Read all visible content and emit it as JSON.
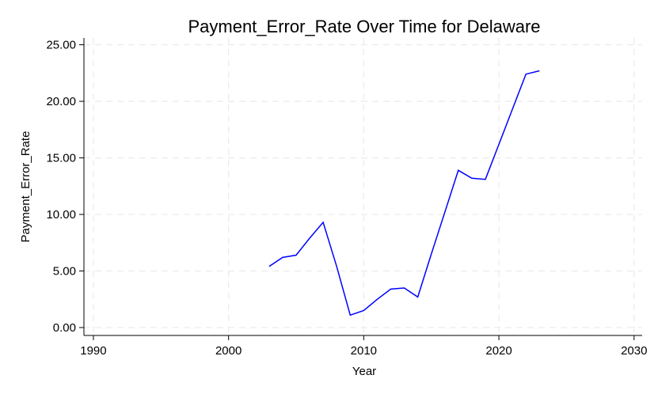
{
  "chart_data": {
    "type": "line",
    "title": "Payment_Error_Rate Over Time for Delaware",
    "xlabel": "Year",
    "ylabel": "Payment_Error_Rate",
    "xlim": [
      1989.3,
      2030.6
    ],
    "ylim": [
      -0.7,
      25.6
    ],
    "x_ticks": [
      1990,
      2000,
      2010,
      2020,
      2030
    ],
    "y_ticks": [
      0,
      5,
      10,
      15,
      20,
      25
    ],
    "y_tick_labels": [
      "0.00",
      "5.00",
      "10.00",
      "15.00",
      "20.00",
      "25.00"
    ],
    "grid": true,
    "line_color": "#0000ff",
    "series": [
      {
        "x": [
          2003,
          2004,
          2005,
          2006,
          2007,
          2008,
          2009,
          2010,
          2011,
          2012,
          2013,
          2014,
          2015,
          2016,
          2017,
          2018,
          2019,
          2020,
          2021,
          2022,
          2023
        ],
        "values": [
          5.4,
          6.2,
          6.4,
          7.9,
          9.3,
          5.4,
          1.1,
          1.5,
          2.5,
          3.4,
          3.5,
          2.7,
          6.5,
          10.2,
          13.9,
          13.2,
          13.1,
          16.2,
          19.3,
          22.4,
          22.7
        ]
      }
    ]
  }
}
